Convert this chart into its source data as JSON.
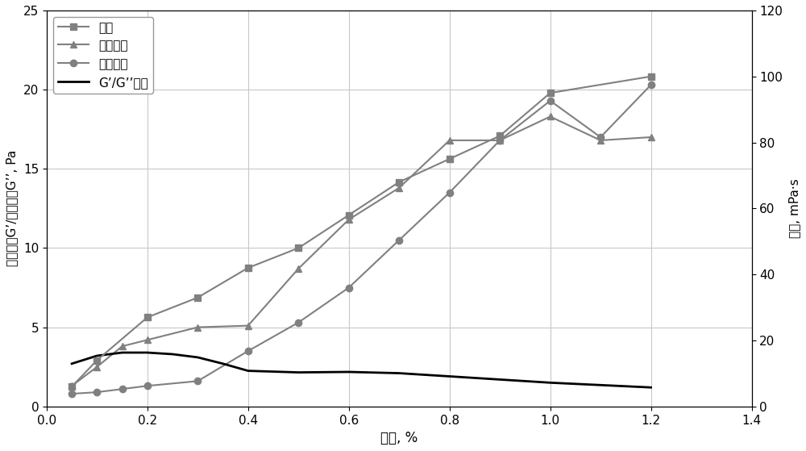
{
  "viscosity_x": [
    0.05,
    0.1,
    0.2,
    0.3,
    0.4,
    0.5,
    0.6,
    0.7,
    0.8,
    0.9,
    1.0,
    1.2
  ],
  "viscosity_y": [
    6,
    14,
    27,
    33,
    42,
    48,
    58,
    68,
    75,
    82,
    95,
    100
  ],
  "elastic_x": [
    0.05,
    0.1,
    0.15,
    0.2,
    0.3,
    0.4,
    0.5,
    0.6,
    0.7,
    0.8,
    0.9,
    1.0,
    1.1,
    1.2
  ],
  "elastic_y": [
    1.3,
    2.5,
    3.8,
    4.2,
    5.0,
    5.1,
    8.7,
    11.8,
    13.8,
    16.8,
    16.8,
    18.3,
    16.8,
    17.0
  ],
  "loss_x": [
    0.05,
    0.1,
    0.15,
    0.2,
    0.3,
    0.4,
    0.5,
    0.6,
    0.7,
    0.8,
    0.9,
    1.0,
    1.1,
    1.2
  ],
  "loss_y": [
    0.8,
    0.9,
    1.1,
    1.3,
    1.6,
    3.5,
    5.3,
    7.5,
    10.5,
    13.5,
    16.8,
    19.3,
    17.0,
    20.3
  ],
  "ratio_x": [
    0.05,
    0.1,
    0.15,
    0.2,
    0.25,
    0.3,
    0.35,
    0.4,
    0.5,
    0.6,
    0.7,
    0.8,
    0.9,
    1.0,
    1.1,
    1.2
  ],
  "ratio_y": [
    2.7,
    3.2,
    3.4,
    3.4,
    3.3,
    3.1,
    2.7,
    2.25,
    2.15,
    2.18,
    2.1,
    1.9,
    1.7,
    1.5,
    1.35,
    1.2
  ],
  "left_ylabel": "弹性模量G’/粘性模量G’’, Pa",
  "right_ylabel": "粘度, mPa·s",
  "xlabel": "浓度, %",
  "legend_viscosity": "粘度",
  "legend_elastic": "弹性模量",
  "legend_loss": "粘性模量",
  "legend_ratio": "G’/G’’比値",
  "left_ylim": [
    0,
    25
  ],
  "right_ylim": [
    0,
    120
  ],
  "xlim": [
    0,
    1.4
  ],
  "left_yticks": [
    0,
    5,
    10,
    15,
    20,
    25
  ],
  "right_yticks": [
    0,
    20,
    40,
    60,
    80,
    100,
    120
  ],
  "xticks": [
    0,
    0.2,
    0.4,
    0.6,
    0.8,
    1.0,
    1.2,
    1.4
  ],
  "color_main": "#808080",
  "color_ratio": "#000000",
  "bg_color": "#ffffff",
  "grid_color": "#c8c8c8"
}
